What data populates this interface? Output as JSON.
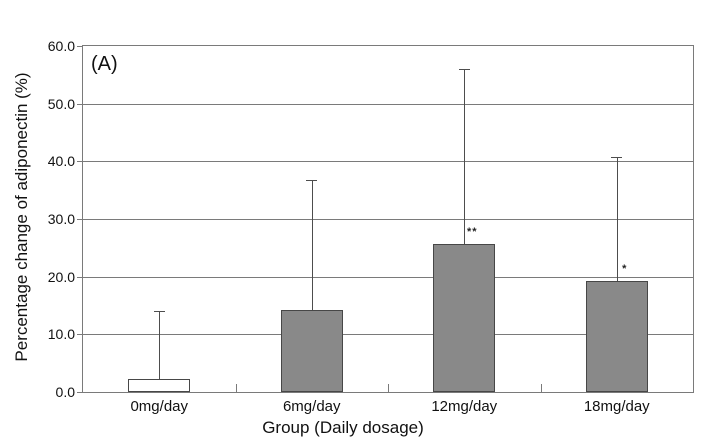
{
  "chart_data": {
    "type": "bar",
    "panel_label": "(A)",
    "xlabel": "Group (Daily dosage)",
    "ylabel": "Percentage change of adiponectin (%)",
    "categories": [
      "0mg/day",
      "6mg/day",
      "12mg/day",
      "18mg/day"
    ],
    "values": [
      2.3,
      14.2,
      25.7,
      19.2
    ],
    "error_top": [
      14.0,
      36.7,
      56.0,
      40.8
    ],
    "significance": [
      "",
      "",
      "**",
      "*"
    ],
    "ylim": [
      0,
      60
    ],
    "yticks": [
      "0.0",
      "10.0",
      "20.0",
      "30.0",
      "40.0",
      "50.0",
      "60.0"
    ],
    "grid": "horizontal",
    "legend": "none",
    "bar_fill": [
      "#ffffff",
      "#898989",
      "#898989",
      "#898989"
    ],
    "colors": {
      "axis_line": "#7a7a7a",
      "gridline": "#7a7a7a",
      "bar_border": "#474747",
      "error_bar": "#4d4d4d",
      "text": "#111111",
      "background": "#ffffff"
    }
  }
}
